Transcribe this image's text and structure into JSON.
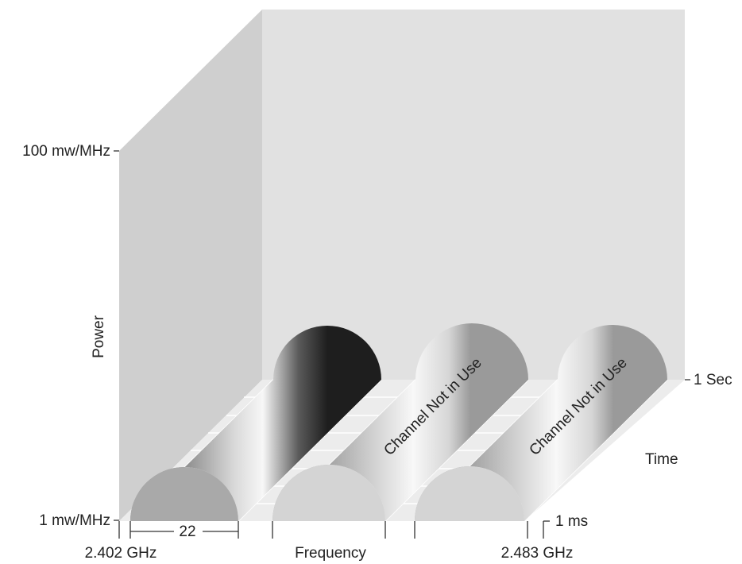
{
  "axes": {
    "power_label": "Power",
    "power_max": "100 mw/MHz",
    "power_min": "1 mw/MHz",
    "frequency_label": "Frequency",
    "freq_start": "2.402 GHz",
    "freq_end": "2.483 GHz",
    "time_label": "Time",
    "time_start": "1 ms",
    "time_end": "1 Sec"
  },
  "channel_width_label": "22",
  "channels": [
    {
      "label": ""
    },
    {
      "label": "Channel Not in Use"
    },
    {
      "label": "Channel Not in Use"
    }
  ],
  "colors": {
    "back_wall": "#e1e1e1",
    "side_wall": "#cfcfcf",
    "floor": "#ececec"
  }
}
